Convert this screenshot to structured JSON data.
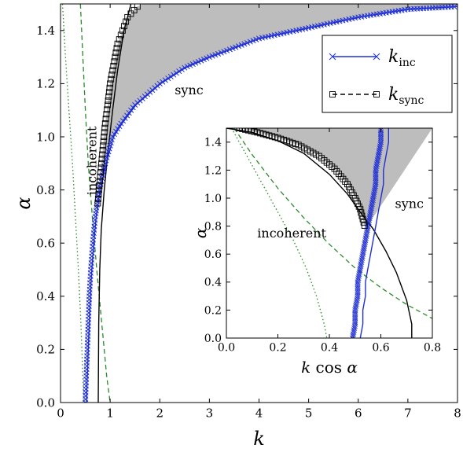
{
  "chart_data": [
    {
      "type": "line",
      "panel": "main",
      "xlabel": "k",
      "ylabel": "α",
      "xlim": [
        0,
        8
      ],
      "ylim": [
        0,
        1.5
      ],
      "xticks": [
        "0",
        "1",
        "2",
        "3",
        "4",
        "5",
        "6",
        "7",
        "8"
      ],
      "yticks": [
        "0.0",
        "0.2",
        "0.4",
        "0.6",
        "0.8",
        "1.0",
        "1.2",
        "1.4"
      ],
      "region_labels": [
        {
          "text": "sync",
          "x": 2.3,
          "y": 1.16,
          "rotate": false
        },
        {
          "text": "incoherent",
          "x": 0.72,
          "y": 0.91,
          "rotate": true
        }
      ],
      "legend": {
        "placement": "upper right",
        "entries": [
          {
            "label": "k",
            "sub": "inc",
            "marker": "x",
            "line": "solid",
            "color": "#1f2fd6"
          },
          {
            "label": "k",
            "sub": "sync",
            "marker": "square",
            "line": "dashed",
            "color": "#000000"
          }
        ]
      },
      "series": [
        {
          "name": "k_inc",
          "style": "blue-solid-x",
          "color": "#1f2fd6",
          "points": [
            [
              0.5,
              0.0
            ],
            [
              0.52,
              0.1
            ],
            [
              0.54,
              0.2
            ],
            [
              0.56,
              0.3
            ],
            [
              0.58,
              0.4
            ],
            [
              0.61,
              0.5
            ],
            [
              0.65,
              0.6
            ],
            [
              0.7,
              0.7
            ],
            [
              0.78,
              0.8
            ],
            [
              0.9,
              0.9
            ],
            [
              1.05,
              1.0
            ],
            [
              1.22,
              1.05
            ],
            [
              1.5,
              1.12
            ],
            [
              2.0,
              1.2
            ],
            [
              2.5,
              1.26
            ],
            [
              3.0,
              1.3
            ],
            [
              4.0,
              1.37
            ],
            [
              5.0,
              1.41
            ],
            [
              6.0,
              1.45
            ],
            [
              7.0,
              1.48
            ],
            [
              8.0,
              1.49
            ]
          ]
        },
        {
          "name": "k_sync",
          "style": "black-square",
          "color": "#000000",
          "points": [
            [
              0.75,
              0.75
            ],
            [
              0.8,
              0.85
            ],
            [
              0.85,
              0.95
            ],
            [
              0.9,
              1.05
            ],
            [
              0.95,
              1.12
            ],
            [
              1.0,
              1.2
            ],
            [
              1.05,
              1.25
            ],
            [
              1.1,
              1.3
            ],
            [
              1.15,
              1.35
            ],
            [
              1.25,
              1.4
            ],
            [
              1.35,
              1.45
            ],
            [
              1.55,
              1.49
            ],
            [
              1.65,
              1.5
            ]
          ]
        },
        {
          "name": "black-solid",
          "color": "#000000",
          "points": [
            [
              0.76,
              0.0
            ],
            [
              0.77,
              0.3
            ],
            [
              0.79,
              0.5
            ],
            [
              0.82,
              0.65
            ],
            [
              0.88,
              0.8
            ],
            [
              0.96,
              0.95
            ],
            [
              1.05,
              1.1
            ],
            [
              1.15,
              1.25
            ],
            [
              1.28,
              1.4
            ],
            [
              1.42,
              1.5
            ]
          ]
        },
        {
          "name": "green-dashed",
          "color": "#2a8a2a",
          "points": [
            [
              0.4,
              1.5
            ],
            [
              0.45,
              1.3
            ],
            [
              0.5,
              1.1
            ],
            [
              0.56,
              0.9
            ],
            [
              0.64,
              0.7
            ],
            [
              0.73,
              0.5
            ],
            [
              0.83,
              0.3
            ],
            [
              0.93,
              0.1
            ],
            [
              1.0,
              0.0
            ]
          ]
        },
        {
          "name": "green-dotted",
          "color": "#2a8a2a",
          "points": [
            [
              0.04,
              1.5
            ],
            [
              0.1,
              1.3
            ],
            [
              0.17,
              1.1
            ],
            [
              0.24,
              0.9
            ],
            [
              0.3,
              0.7
            ],
            [
              0.36,
              0.5
            ],
            [
              0.41,
              0.3
            ],
            [
              0.45,
              0.1
            ],
            [
              0.47,
              0.0
            ]
          ]
        }
      ]
    },
    {
      "type": "line",
      "panel": "inset",
      "xlabel": "k cos α",
      "ylabel": "α",
      "xlim": [
        0,
        0.8
      ],
      "ylim": [
        0,
        1.5
      ],
      "xticks": [
        "0.0",
        "0.2",
        "0.4",
        "0.6",
        "0.8"
      ],
      "yticks": [
        "0.0",
        "0.2",
        "0.4",
        "0.6",
        "0.8",
        "1.0",
        "1.2",
        "1.4"
      ],
      "region_labels": [
        {
          "text": "sync",
          "x": 0.655,
          "y": 0.93,
          "rotate": false
        },
        {
          "text": "incoherent",
          "x": 0.12,
          "y": 0.72,
          "rotate": false
        }
      ],
      "series": [
        {
          "name": "k_inc",
          "style": "blue-solid-x",
          "color": "#1f2fd6",
          "points": [
            [
              0.49,
              0.0
            ],
            [
              0.5,
              0.1
            ],
            [
              0.5,
              0.2
            ],
            [
              0.51,
              0.3
            ],
            [
              0.51,
              0.4
            ],
            [
              0.52,
              0.5
            ],
            [
              0.53,
              0.6
            ],
            [
              0.54,
              0.7
            ],
            [
              0.55,
              0.8
            ],
            [
              0.56,
              0.9
            ],
            [
              0.57,
              1.0
            ],
            [
              0.58,
              1.1
            ],
            [
              0.58,
              1.2
            ],
            [
              0.59,
              1.3
            ],
            [
              0.6,
              1.4
            ],
            [
              0.6,
              1.5
            ]
          ]
        },
        {
          "name": "k_sync",
          "style": "black-square",
          "color": "#000000",
          "points": [
            [
              0.05,
              1.5
            ],
            [
              0.12,
              1.47
            ],
            [
              0.2,
              1.43
            ],
            [
              0.28,
              1.38
            ],
            [
              0.36,
              1.3
            ],
            [
              0.42,
              1.21
            ],
            [
              0.47,
              1.1
            ],
            [
              0.5,
              1.0
            ],
            [
              0.52,
              0.92
            ],
            [
              0.53,
              0.85
            ],
            [
              0.54,
              0.78
            ]
          ]
        },
        {
          "name": "black-solid",
          "color": "#000000",
          "points": [
            [
              0.0,
              1.5
            ],
            [
              0.1,
              1.47
            ],
            [
              0.2,
              1.41
            ],
            [
              0.3,
              1.32
            ],
            [
              0.4,
              1.17
            ],
            [
              0.47,
              1.03
            ],
            [
              0.52,
              0.9
            ],
            [
              0.57,
              0.78
            ],
            [
              0.62,
              0.62
            ],
            [
              0.66,
              0.47
            ],
            [
              0.7,
              0.27
            ],
            [
              0.72,
              0.1
            ],
            [
              0.72,
              0.0
            ]
          ]
        },
        {
          "name": "green-dashed",
          "color": "#2a8a2a",
          "points": [
            [
              0.03,
              1.5
            ],
            [
              0.1,
              1.31
            ],
            [
              0.2,
              1.07
            ],
            [
              0.3,
              0.86
            ],
            [
              0.4,
              0.67
            ],
            [
              0.5,
              0.5
            ],
            [
              0.6,
              0.36
            ],
            [
              0.7,
              0.24
            ],
            [
              0.8,
              0.14
            ]
          ]
        },
        {
          "name": "green-dotted",
          "color": "#2a8a2a",
          "points": [
            [
              0.02,
              1.5
            ],
            [
              0.08,
              1.3
            ],
            [
              0.14,
              1.1
            ],
            [
              0.2,
              0.9
            ],
            [
              0.26,
              0.7
            ],
            [
              0.31,
              0.5
            ],
            [
              0.35,
              0.3
            ],
            [
              0.38,
              0.1
            ],
            [
              0.39,
              0.0
            ]
          ]
        }
      ]
    }
  ]
}
